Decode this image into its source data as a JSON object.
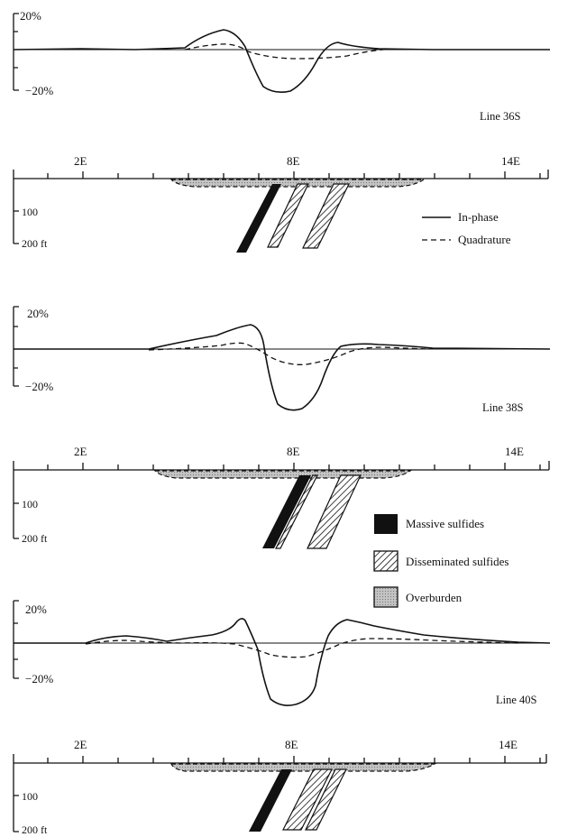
{
  "amplitude_labels": {
    "top": "20%",
    "bottom": "−20%"
  },
  "profiles": [
    {
      "line_label": "Line 36S",
      "top_label": "20%",
      "bottom_label": "−20%"
    },
    {
      "line_label": "Line 38S",
      "top_label": "20%",
      "bottom_label": "−20%"
    },
    {
      "line_label": "Line 40S",
      "top_label": "20%",
      "bottom_label": "−20%"
    }
  ],
  "station_axis": {
    "labels": [
      "2E",
      "8E",
      "14E"
    ]
  },
  "depth_axis": {
    "labels": [
      "100",
      "200 ft"
    ]
  },
  "curve_legend": {
    "in_phase": "In-phase",
    "quadrature": "Quadrature"
  },
  "material_legend": {
    "massive": "Massive sulfides",
    "disseminated": "Disseminated sulfides",
    "overburden": "Overburden"
  },
  "colors": {
    "ink": "#111111",
    "massive": "#111111",
    "overburden": "#b5b5b5"
  }
}
